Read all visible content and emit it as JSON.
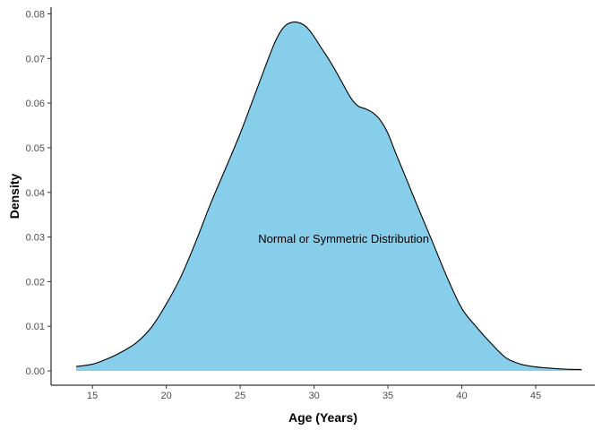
{
  "chart_data": {
    "type": "area",
    "xlabel": "Age (Years)",
    "ylabel": "Density",
    "annotation": {
      "text": "Normal or Symmetric Distribution",
      "x": 32,
      "y": 0.0295
    },
    "xlim": [
      12.2,
      49
    ],
    "ylim": [
      -0.0032,
      0.0815
    ],
    "x_ticks": [
      15,
      20,
      25,
      30,
      35,
      40,
      45
    ],
    "x_tick_labels": [
      "15",
      "20",
      "25",
      "30",
      "35",
      "40",
      "45"
    ],
    "y_ticks": [
      0.0,
      0.01,
      0.02,
      0.03,
      0.04,
      0.05,
      0.06,
      0.07,
      0.08
    ],
    "y_tick_labels": [
      "0.00",
      "0.01",
      "0.02",
      "0.03",
      "0.04",
      "0.05",
      "0.06",
      "0.07",
      "0.08"
    ],
    "grid": false,
    "fill_color": "#87CEEB",
    "line_color": "#000000",
    "series": [
      {
        "x": [
          13.9,
          15,
          16,
          17,
          18,
          19,
          20,
          21,
          22,
          23,
          24,
          25,
          26,
          27,
          27.5,
          28,
          28.5,
          29,
          29.5,
          30,
          30.5,
          31,
          31.5,
          32,
          32.5,
          33,
          33.5,
          34,
          34.5,
          35,
          35.5,
          36,
          37,
          38,
          39,
          40,
          41,
          42,
          43,
          44,
          45,
          46,
          47,
          48.1
        ],
        "y": [
          0.001,
          0.0015,
          0.0027,
          0.0043,
          0.0064,
          0.0098,
          0.015,
          0.0212,
          0.029,
          0.0375,
          0.0453,
          0.0532,
          0.062,
          0.0708,
          0.0747,
          0.0772,
          0.0781,
          0.078,
          0.077,
          0.0749,
          0.0723,
          0.0698,
          0.067,
          0.064,
          0.0611,
          0.0593,
          0.0587,
          0.0578,
          0.0561,
          0.0532,
          0.049,
          0.045,
          0.0369,
          0.029,
          0.021,
          0.014,
          0.0098,
          0.0061,
          0.0029,
          0.0015,
          0.0009,
          0.0006,
          0.0004,
          0.0003
        ]
      }
    ]
  }
}
